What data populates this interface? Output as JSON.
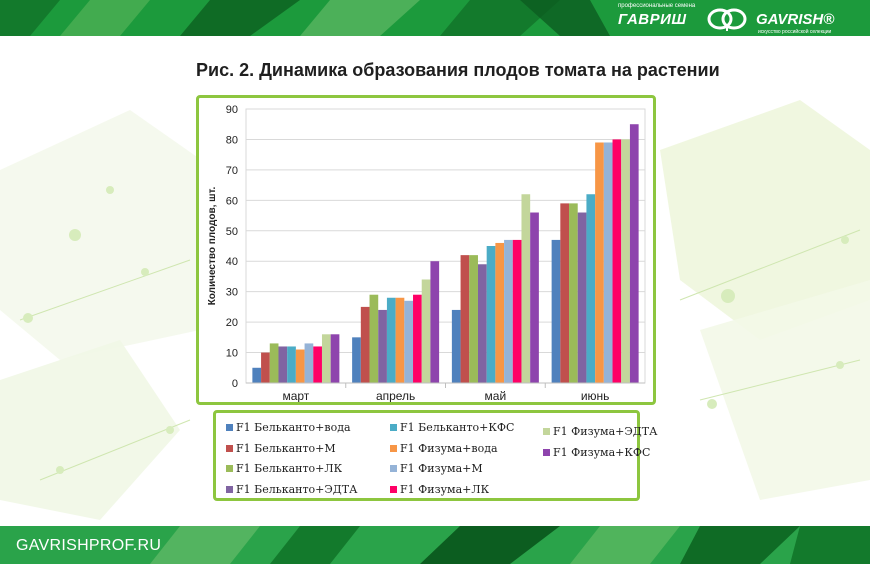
{
  "header": {
    "logo_tagline": "профессиональные семена",
    "logo_ru": "ГАВРИШ",
    "logo_en": "GAVRISH®",
    "logo_sub": "искусство российской селекции"
  },
  "footer": {
    "site": "GAVRISHPROF.RU"
  },
  "colors": {
    "brand_green": "#1c9a3c",
    "frame_green": "#8dc63f"
  },
  "chart_data": {
    "type": "bar",
    "title": "Рис. 2. Динамика образования плодов томата на растении",
    "ylabel": "Количество плодов, шт.",
    "xlabel": "",
    "ylim": [
      0,
      90
    ],
    "yticks": [
      0,
      10,
      20,
      30,
      40,
      50,
      60,
      70,
      80,
      90
    ],
    "grid": true,
    "legend_position": "bottom",
    "categories": [
      "март",
      "апрель",
      "май",
      "июнь"
    ],
    "series": [
      {
        "name": "F1 Бельканто+вода",
        "color": "#4f81bd",
        "values": [
          5,
          15,
          24,
          47
        ]
      },
      {
        "name": "F1 Бельканто+М",
        "color": "#c0504d",
        "values": [
          10,
          25,
          42,
          59
        ]
      },
      {
        "name": "F1 Бельканто+ЛК",
        "color": "#9bbb59",
        "values": [
          13,
          29,
          42,
          59
        ]
      },
      {
        "name": "F1 Бельканто+ЭДТА",
        "color": "#8064a2",
        "values": [
          12,
          24,
          39,
          56
        ]
      },
      {
        "name": "F1 Бельканто+КФС",
        "color": "#4bacc6",
        "values": [
          12,
          28,
          45,
          62
        ]
      },
      {
        "name": "F1 Физума+вода",
        "color": "#f79646",
        "values": [
          11,
          28,
          46,
          79
        ]
      },
      {
        "name": "F1 Физума+М",
        "color": "#95b3d7",
        "values": [
          13,
          27,
          47,
          79
        ]
      },
      {
        "name": "F1 Физума+ЛК",
        "color": "#ff0066",
        "values": [
          12,
          29,
          47,
          80
        ]
      },
      {
        "name": "F1 Физума+ЭДТА",
        "color": "#c3d69b",
        "values": [
          16,
          34,
          62,
          80
        ]
      },
      {
        "name": "F1 Физума+КФС",
        "color": "#8e44ad",
        "values": [
          16,
          40,
          56,
          85
        ]
      }
    ]
  }
}
